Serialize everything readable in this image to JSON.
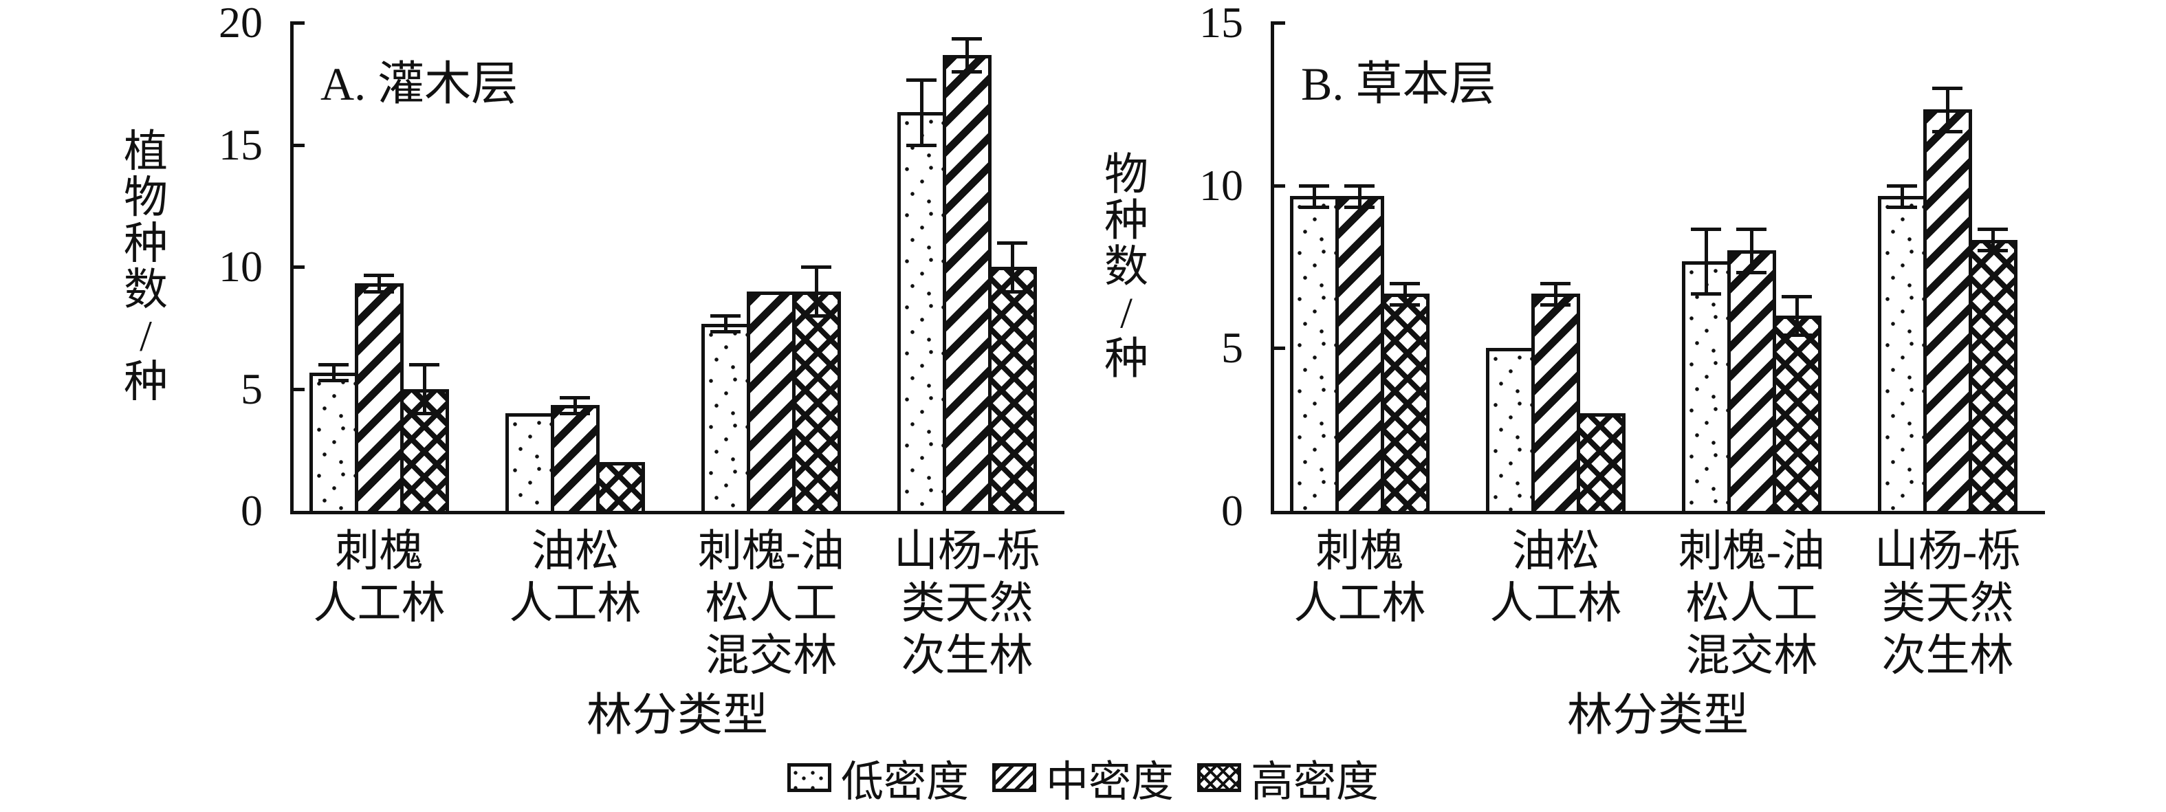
{
  "figure": {
    "background": "#ffffff",
    "ink": "#111111"
  },
  "legend": {
    "items": [
      {
        "label": "低密度",
        "pattern": "dots"
      },
      {
        "label": "中密度",
        "pattern": "diag"
      },
      {
        "label": "高密度",
        "pattern": "cross"
      }
    ]
  },
  "chart_data": [
    {
      "type": "bar",
      "panel_label": "A",
      "title": "A. 灌木层",
      "xlabel": "林分类型",
      "ylabel": "植物种数/种",
      "ylim": [
        0,
        20
      ],
      "yticks": [
        0,
        5,
        10,
        15,
        20
      ],
      "grid": false,
      "legend_position": "bottom-center",
      "categories": [
        [
          "刺槐",
          "人工林"
        ],
        [
          "油松",
          "人工林"
        ],
        [
          "刺槐-油",
          "松人工",
          "混交林"
        ],
        [
          "山杨-栎",
          "类天然",
          "次生林"
        ]
      ],
      "series": [
        {
          "name": "低密度",
          "pattern": "dots",
          "values": [
            5.67,
            4,
            7.67,
            16.33
          ],
          "errors": [
            0.33,
            0,
            0.33,
            1.33
          ]
        },
        {
          "name": "中密度",
          "pattern": "diag",
          "values": [
            9.33,
            4.33,
            9,
            18.67
          ],
          "errors": [
            0.33,
            0.33,
            0,
            0.67
          ]
        },
        {
          "name": "高密度",
          "pattern": "cross",
          "values": [
            5,
            2,
            9,
            10
          ],
          "errors": [
            1,
            0,
            1,
            1
          ]
        }
      ]
    },
    {
      "type": "bar",
      "panel_label": "B",
      "title": "B. 草本层",
      "xlabel": "林分类型",
      "ylabel": "物种数/种",
      "ylim": [
        0,
        15
      ],
      "yticks": [
        0,
        5,
        10,
        15
      ],
      "grid": false,
      "legend_position": "bottom-center",
      "categories": [
        [
          "刺槐",
          "人工林"
        ],
        [
          "油松",
          "人工林"
        ],
        [
          "刺槐-油",
          "松人工",
          "混交林"
        ],
        [
          "山杨-栎",
          "类天然",
          "次生林"
        ]
      ],
      "series": [
        {
          "name": "低密度",
          "pattern": "dots",
          "values": [
            9.67,
            5,
            7.67,
            9.67
          ],
          "errors": [
            0.33,
            0,
            1,
            0.33
          ]
        },
        {
          "name": "中密度",
          "pattern": "diag",
          "values": [
            9.67,
            6.67,
            8,
            12.33
          ],
          "errors": [
            0.33,
            0.33,
            0.67,
            0.67
          ]
        },
        {
          "name": "高密度",
          "pattern": "cross",
          "values": [
            6.67,
            3,
            6,
            8.33
          ],
          "errors": [
            0.33,
            0,
            0.6,
            0.33
          ]
        }
      ]
    }
  ]
}
